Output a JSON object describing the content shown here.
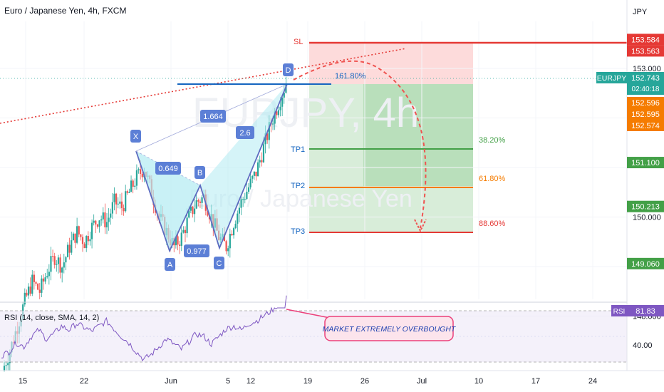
{
  "header": {
    "title": "Euro / Japanese Yen, 4h, FXCM",
    "currency": "JPY"
  },
  "watermark": {
    "symbol": "EURJPY, 4h",
    "name": "Euro / Japanese Yen"
  },
  "price_axis": {
    "ticks": [
      "153.000",
      "150.000",
      "148.000"
    ],
    "tags": [
      {
        "text": "153.584",
        "price": 153.584,
        "color": "#e53935"
      },
      {
        "text": "153.563",
        "price": 153.563,
        "color": "#e53935"
      },
      {
        "text": "152.596",
        "price": 152.596,
        "color": "#f57c00"
      },
      {
        "text": "152.595",
        "price": 152.595,
        "color": "#f57c00"
      },
      {
        "text": "152.574",
        "price": 152.574,
        "color": "#f57c00"
      },
      {
        "text": "151.100",
        "price": 151.1,
        "color": "#43a047"
      },
      {
        "text": "150.213",
        "price": 150.213,
        "color": "#43a047"
      },
      {
        "text": "149.060",
        "price": 149.06,
        "color": "#43a047"
      }
    ],
    "symbol_tag": {
      "symbol": "EURJPY",
      "price": "152.743",
      "countdown": "02:40:18",
      "color": "#26a69a"
    }
  },
  "time_axis": {
    "labels": [
      "15",
      "22",
      "Jun",
      "5",
      "12",
      "19",
      "26",
      "Jul",
      "10",
      "17",
      "24"
    ]
  },
  "pattern": {
    "points": [
      {
        "label": "X",
        "price": 151.02
      },
      {
        "label": "A",
        "price": 149.35
      },
      {
        "label": "B",
        "price": 150.4
      },
      {
        "label": "C",
        "price": 149.38
      },
      {
        "label": "D",
        "price": 152.7
      }
    ],
    "ratios": [
      "0.649",
      "0.977",
      "1.664",
      "2.6"
    ],
    "extension": "161.80%"
  },
  "levels": {
    "sl": {
      "label": "SL",
      "price": 153.563,
      "color": "#e53935"
    },
    "tp": [
      {
        "label": "TP1",
        "pct": "38.20%",
        "price": 151.1,
        "color": "#43a047"
      },
      {
        "label": "TP2",
        "pct": "61.80%",
        "price": 150.213,
        "color": "#f57c00"
      },
      {
        "label": "TP3",
        "pct": "88.60%",
        "price": 149.06,
        "color": "#e53935"
      }
    ]
  },
  "rsi": {
    "label": "RSI (14, close, SMA, 14, 2)",
    "tag_label": "RSI",
    "value": "81.83",
    "tick": "40.00",
    "annotation": "MARKET EXTREMELY OVERBOUGHT",
    "color": "#7e57c2"
  },
  "chart_data": {
    "type": "candlestick",
    "title": "Euro / Japanese Yen, 4h, FXCM",
    "ylim": [
      147.2,
      154.0
    ],
    "close_series": [
      146.9,
      147.3,
      147.8,
      148.3,
      148.7,
      148.5,
      148.9,
      149.2,
      149.0,
      149.4,
      149.7,
      149.5,
      149.8,
      150.0,
      149.9,
      150.3,
      150.2,
      150.5,
      150.8,
      151.0,
      150.5,
      150.0,
      149.7,
      149.4,
      149.6,
      150.0,
      150.3,
      150.4,
      150.0,
      149.6,
      149.4,
      149.9,
      150.3,
      150.6,
      150.9,
      151.4,
      151.9,
      152.3,
      152.7
    ],
    "rsi_series": [
      35,
      38,
      45,
      42,
      50,
      55,
      48,
      52,
      58,
      55,
      60,
      57,
      54,
      58,
      62,
      56,
      50,
      45,
      38,
      32,
      36,
      42,
      48,
      44,
      40,
      46,
      52,
      50,
      44,
      50,
      56,
      58,
      55,
      60,
      62,
      66,
      70,
      76,
      81.83
    ]
  }
}
